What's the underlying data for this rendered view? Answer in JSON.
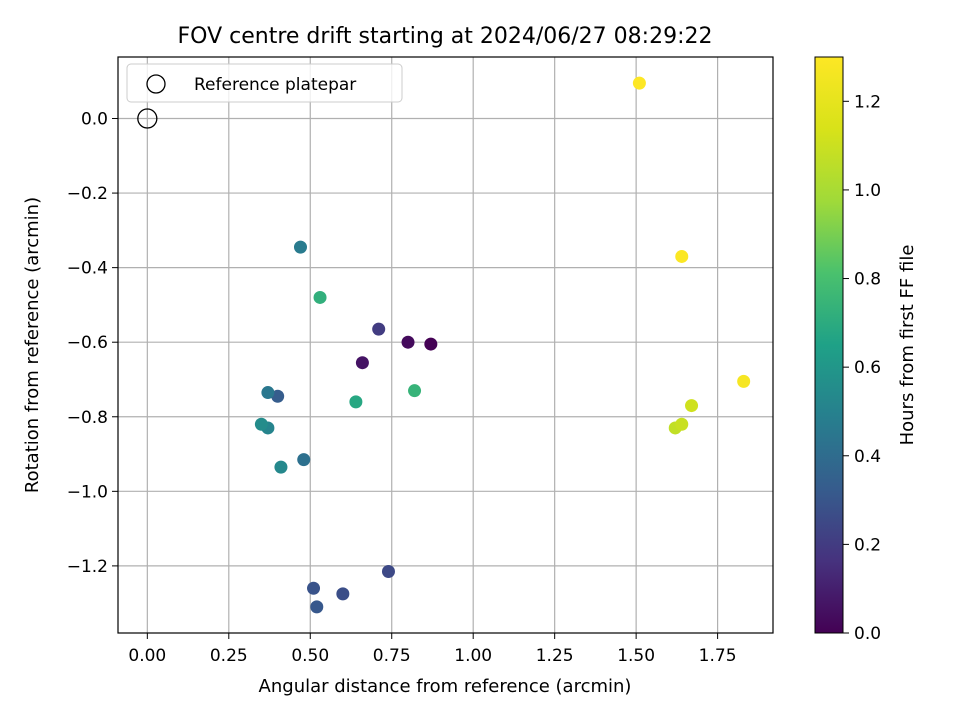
{
  "chart_data": {
    "type": "scatter",
    "title": "FOV centre drift starting at 2024/06/27 08:29:22",
    "xlabel": "Angular distance from reference (arcmin)",
    "ylabel": "Rotation from reference (arcmin)",
    "xlim": [
      -0.09,
      1.92
    ],
    "ylim": [
      -1.38,
      0.165
    ],
    "xticks": [
      "0.00",
      "0.25",
      "0.50",
      "0.75",
      "1.00",
      "1.25",
      "1.50",
      "1.75"
    ],
    "xtick_values": [
      0,
      0.25,
      0.5,
      0.75,
      1.0,
      1.25,
      1.5,
      1.75
    ],
    "yticks": [
      "0.0",
      "−0.2",
      "−0.4",
      "−0.6",
      "−0.8",
      "−1.0",
      "−1.2"
    ],
    "ytick_values": [
      0,
      -0.2,
      -0.4,
      -0.6,
      -0.8,
      -1.0,
      -1.2
    ],
    "grid": true,
    "legend": {
      "placement": "top-left",
      "entries": [
        "Reference platepar"
      ]
    },
    "reference_point": {
      "x": 0.0,
      "y": 0.0
    },
    "colorbar": {
      "label": "Hours from first FF file",
      "range": [
        0.0,
        1.3
      ],
      "ticks": [
        "0.0",
        "0.2",
        "0.4",
        "0.6",
        "0.8",
        "1.0",
        "1.2"
      ],
      "tick_values": [
        0.0,
        0.2,
        0.4,
        0.6,
        0.8,
        1.0,
        1.2
      ],
      "colormap": "viridis"
    },
    "points": [
      {
        "x": 0.87,
        "y": -0.605,
        "c": 0.0
      },
      {
        "x": 0.8,
        "y": -0.6,
        "c": 0.03
      },
      {
        "x": 0.66,
        "y": -0.655,
        "c": 0.06
      },
      {
        "x": 0.71,
        "y": -0.565,
        "c": 0.2
      },
      {
        "x": 0.74,
        "y": -1.215,
        "c": 0.25
      },
      {
        "x": 0.6,
        "y": -1.275,
        "c": 0.27
      },
      {
        "x": 0.51,
        "y": -1.26,
        "c": 0.29
      },
      {
        "x": 0.52,
        "y": -1.31,
        "c": 0.31
      },
      {
        "x": 0.4,
        "y": -0.745,
        "c": 0.33
      },
      {
        "x": 0.48,
        "y": -0.915,
        "c": 0.42
      },
      {
        "x": 0.37,
        "y": -0.735,
        "c": 0.45
      },
      {
        "x": 0.47,
        "y": -0.345,
        "c": 0.47
      },
      {
        "x": 0.37,
        "y": -0.83,
        "c": 0.51
      },
      {
        "x": 0.41,
        "y": -0.935,
        "c": 0.53
      },
      {
        "x": 0.35,
        "y": -0.82,
        "c": 0.55
      },
      {
        "x": 0.64,
        "y": -0.76,
        "c": 0.68
      },
      {
        "x": 0.53,
        "y": -0.48,
        "c": 0.72
      },
      {
        "x": 0.82,
        "y": -0.73,
        "c": 0.74
      },
      {
        "x": 1.62,
        "y": -0.83,
        "c": 1.07
      },
      {
        "x": 1.64,
        "y": -0.82,
        "c": 1.09
      },
      {
        "x": 1.67,
        "y": -0.77,
        "c": 1.11
      },
      {
        "x": 1.83,
        "y": -0.705,
        "c": 1.27
      },
      {
        "x": 1.64,
        "y": -0.37,
        "c": 1.29
      },
      {
        "x": 1.51,
        "y": 0.095,
        "c": 1.3
      }
    ]
  }
}
